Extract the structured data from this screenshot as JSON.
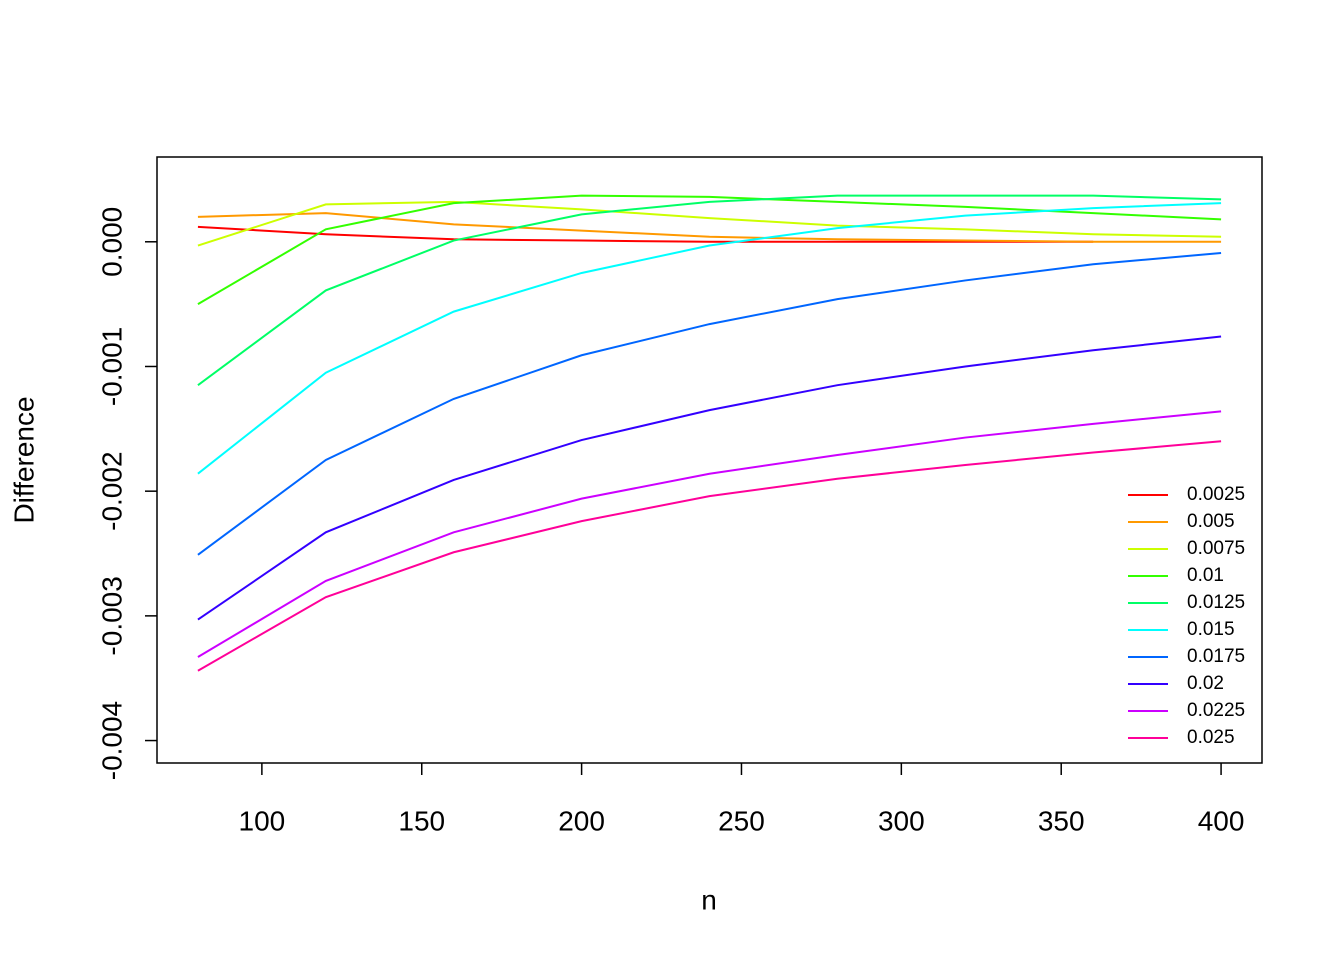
{
  "chart_data": {
    "type": "line",
    "x_label": "n",
    "y_label": "Difference",
    "x": [
      80,
      120,
      160,
      200,
      240,
      280,
      320,
      360,
      400
    ],
    "xlim": [
      67.2,
      412.8
    ],
    "xticks": [
      100,
      150,
      200,
      250,
      300,
      350,
      400
    ],
    "ylim": [
      -0.00418,
      0.00068
    ],
    "yticks": [
      {
        "value": -0.004,
        "label": "-0.004"
      },
      {
        "value": -0.003,
        "label": "-0.003"
      },
      {
        "value": -0.002,
        "label": "-0.002"
      },
      {
        "value": -0.001,
        "label": "-0.001"
      },
      {
        "value": 0,
        "label": "0.000"
      }
    ],
    "legend": "bottom-right",
    "series": [
      {
        "name": "0.0025",
        "color": "#FF0000",
        "values": [
          0.00012,
          6e-05,
          2e-05,
          1e-05,
          0,
          0,
          0,
          0,
          null
        ]
      },
      {
        "name": "0.005",
        "color": "#FF9900",
        "values": [
          0.0002,
          0.00023,
          0.00014,
          9e-05,
          4e-05,
          2e-05,
          1e-05,
          0,
          0
        ]
      },
      {
        "name": "0.0075",
        "color": "#CCFF00",
        "values": [
          -3e-05,
          0.0003,
          0.00032,
          0.00026,
          0.00019,
          0.00013,
          0.0001,
          6e-05,
          4e-05
        ]
      },
      {
        "name": "0.01",
        "color": "#33FF00",
        "values": [
          -0.0005,
          0.0001,
          0.00031,
          0.00037,
          0.00036,
          0.00032,
          0.00028,
          0.00023,
          0.00018
        ]
      },
      {
        "name": "0.0125",
        "color": "#00FF66",
        "values": [
          -0.00115,
          -0.00039,
          1e-05,
          0.00022,
          0.00032,
          0.00037,
          0.00037,
          0.00037,
          0.00034
        ]
      },
      {
        "name": "0.015",
        "color": "#00FFFF",
        "values": [
          -0.00186,
          -0.00105,
          -0.00056,
          -0.00025,
          -3e-05,
          0.00011,
          0.00021,
          0.00027,
          0.00031
        ]
      },
      {
        "name": "0.0175",
        "color": "#0066FF",
        "values": [
          -0.00251,
          -0.00175,
          -0.00126,
          -0.00091,
          -0.00066,
          -0.00046,
          -0.00031,
          -0.00018,
          -9e-05
        ]
      },
      {
        "name": "0.02",
        "color": "#3300FF",
        "values": [
          -0.00303,
          -0.00233,
          -0.00191,
          -0.00159,
          -0.00135,
          -0.00115,
          -0.001,
          -0.00087,
          -0.00076
        ]
      },
      {
        "name": "0.0225",
        "color": "#CC00FF",
        "values": [
          -0.00333,
          -0.00272,
          -0.00233,
          -0.00206,
          -0.00186,
          -0.00171,
          -0.00157,
          -0.00146,
          -0.00136
        ]
      },
      {
        "name": "0.025",
        "color": "#FF0099",
        "values": [
          -0.00344,
          -0.00285,
          -0.00249,
          -0.00224,
          -0.00204,
          -0.0019,
          -0.00179,
          -0.00169,
          -0.0016
        ]
      }
    ]
  }
}
